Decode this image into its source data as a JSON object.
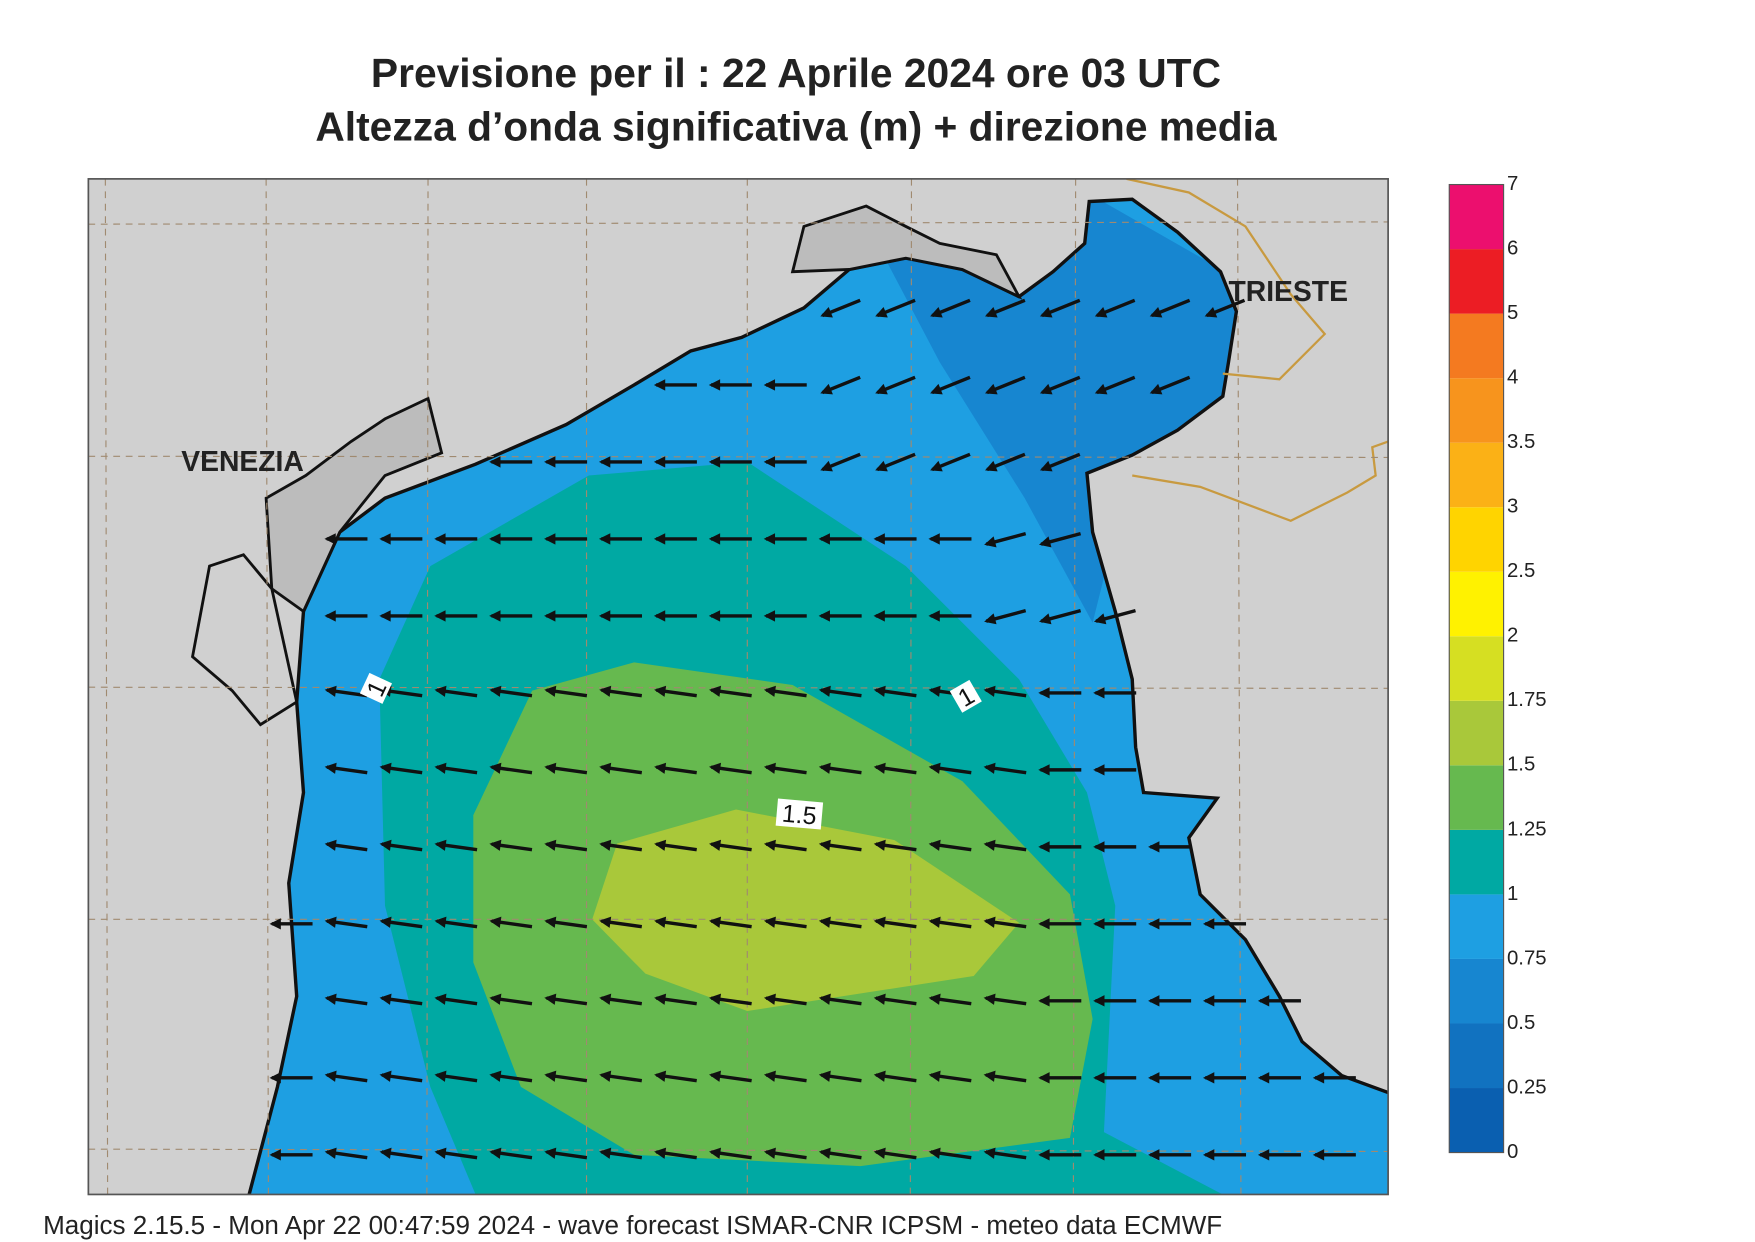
{
  "header": {
    "title_line1": "Previsione per il  :  22   Aprile  2024   ore 03 UTC",
    "title_line2": "Altezza d’onda significativa (m) + direzione media"
  },
  "map": {
    "places": [
      "VENEZIA",
      "TRIESTE"
    ],
    "contour_labels": [
      1,
      1,
      1.5
    ]
  },
  "legend": {
    "levels": [
      0,
      0.25,
      0.5,
      0.75,
      1,
      1.25,
      1.5,
      1.75,
      2,
      2.5,
      3,
      3.5,
      4,
      5,
      6,
      7
    ],
    "colors": [
      "#0a5fb0",
      "#1172c0",
      "#1786d0",
      "#1e9fe2",
      "#00a9a3",
      "#66b94f",
      "#a9c83a",
      "#d6df22",
      "#fff200",
      "#ffd400",
      "#fbb116",
      "#f7941d",
      "#f47a20",
      "#ec1d24",
      "#ec0f6e"
    ]
  },
  "footer": "Magics 2.15.5 - Mon Apr 22 00:47:59 2024 - wave forecast  ISMAR-CNR  ICPSM - meteo data   ECMWF"
}
